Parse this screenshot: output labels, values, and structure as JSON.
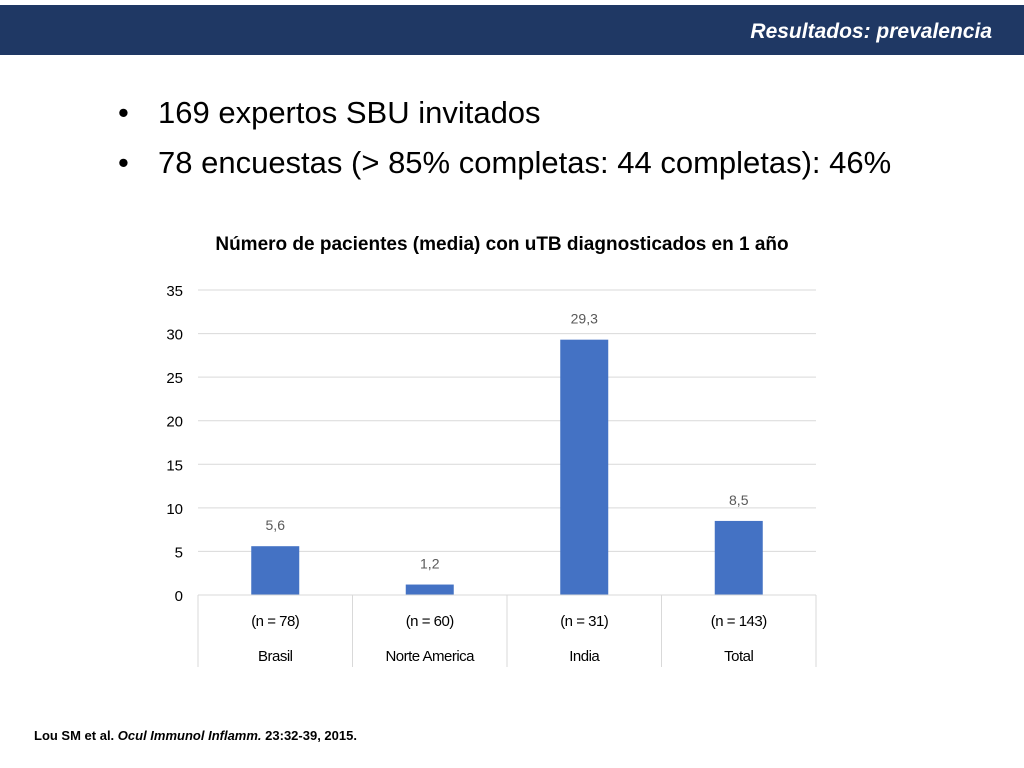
{
  "header": {
    "title": "Resultados: prevalencia"
  },
  "bullets": [
    "169 expertos SBU invitados",
    "78 encuestas (> 85% completas: 44 completas): 46%"
  ],
  "chart_data": {
    "type": "bar",
    "title": "Número de pacientes (media) con uTB diagnosticados en 1 año",
    "categories": [
      "Brasil",
      "Norte America",
      "India",
      "Total"
    ],
    "category_notes": [
      "(n = 78)",
      "(n = 60)",
      "(n = 31)",
      "(n = 143)"
    ],
    "values": [
      5.6,
      1.2,
      29.3,
      8.5
    ],
    "value_labels": [
      "5,6",
      "1,2",
      "29,3",
      "8,5"
    ],
    "yticks": [
      "0",
      "5",
      "10",
      "15",
      "20",
      "25",
      "30",
      "35"
    ],
    "ylim": [
      0,
      35
    ],
    "grid": true,
    "bar_color": "#4472c4"
  },
  "source": {
    "authors": "Lou SM  et al. ",
    "journal": "Ocul Immunol Inflamm.",
    "details": " 23:32-39, 2015."
  }
}
